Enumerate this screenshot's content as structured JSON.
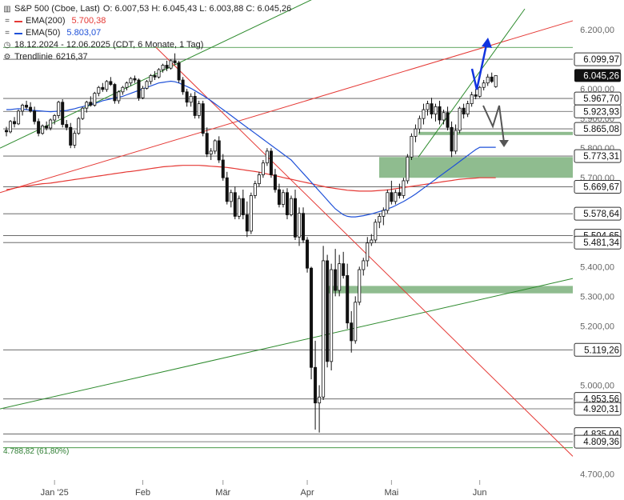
{
  "header": {
    "title": "S&P 500 (Cboe, Last)",
    "ohlc": "O: 6.007,53  H: 6.045,43  L: 6.003,88  C: 6.045,26",
    "ema200_label": "EMA(200)",
    "ema200_value": "5.700,38",
    "ema50_label": "EMA(50)",
    "ema50_value": "5.803,07",
    "range_label": "18.12.2024 - 12.06.2025  (CDT, 6 Monate, 1 Tag)",
    "trend_label": "Trendlinie",
    "trend_value": "6216,37"
  },
  "fibo_label": "4.788,82 (61,80%)",
  "colors": {
    "ema200": "#e53935",
    "ema50": "#1e50d8",
    "trend_green": "#2e8b2e",
    "trend_red": "#e53935",
    "zone": "#8fbc8f",
    "candle": "#111111",
    "label_bg": "#ffffff",
    "label_active_bg": "#111111"
  },
  "chart_data": {
    "type": "candlestick",
    "ylim": [
      4680,
      6300
    ],
    "y_ticks": [
      {
        "value": 6200,
        "label": "6.200,00"
      },
      {
        "value": 6000,
        "label": "6.000,00"
      },
      {
        "value": 5900,
        "label": "5.900,00"
      },
      {
        "value": 5800,
        "label": "5.800,00"
      },
      {
        "value": 5700,
        "label": "5.700,00"
      },
      {
        "value": 5400,
        "label": "5.400,00"
      },
      {
        "value": 5300,
        "label": "5.300,00"
      },
      {
        "value": 5200,
        "label": "5.200,00"
      },
      {
        "value": 5000,
        "label": "5.000,00"
      },
      {
        "value": 4700,
        "label": "4.700,00"
      }
    ],
    "x_ticks": [
      {
        "index": 12,
        "label": "Jan '25"
      },
      {
        "index": 34,
        "label": "Feb"
      },
      {
        "index": 54,
        "label": "Mär"
      },
      {
        "index": 75,
        "label": "Apr"
      },
      {
        "index": 96,
        "label": "Mai"
      },
      {
        "index": 118,
        "label": "Jun"
      }
    ],
    "horizontal_levels": [
      {
        "value": 6099.97,
        "label": "6.099,97"
      },
      {
        "value": 5967.7,
        "label": "5.967,70"
      },
      {
        "value": 5923.93,
        "label": "5.923,93"
      },
      {
        "value": 5865.08,
        "label": "5.865,08"
      },
      {
        "value": 5773.31,
        "label": "5.773,31"
      },
      {
        "value": 5669.67,
        "label": "5.669,67"
      },
      {
        "value": 5578.64,
        "label": "5.578,64"
      },
      {
        "value": 5504.65,
        "label": "5.504,65"
      },
      {
        "value": 5481.34,
        "label": "5.481,34"
      },
      {
        "value": 5119.26,
        "label": "5.119,26"
      },
      {
        "value": 4953.56,
        "label": "4.953,56"
      },
      {
        "value": 4920.31,
        "label": "4.920,31"
      },
      {
        "value": 4835.04,
        "label": "4.835,04"
      },
      {
        "value": 4809.36,
        "label": "4.809,36"
      },
      {
        "value": 4788.82,
        "label": ""
      }
    ],
    "last_price": {
      "value": 6045.26,
      "label": "6.045,26"
    },
    "zones": [
      {
        "from": 5845,
        "to": 5855
      },
      {
        "from": 5700,
        "to": 5770
      },
      {
        "from": 5310,
        "to": 5335
      }
    ],
    "series": [
      {
        "name": "EMA(200)",
        "values": [
          5660,
          5662,
          5665,
          5668,
          5670,
          5672,
          5674,
          5676,
          5678,
          5680,
          5681,
          5682,
          5684,
          5686,
          5688,
          5690,
          5692,
          5694,
          5696,
          5698,
          5700,
          5702,
          5704,
          5706,
          5708,
          5710,
          5712,
          5714,
          5716,
          5718,
          5720,
          5721,
          5723,
          5725,
          5727,
          5729,
          5731,
          5733,
          5735,
          5737,
          5738,
          5739,
          5740,
          5741,
          5742,
          5742,
          5742,
          5742,
          5742,
          5741,
          5740,
          5739,
          5738,
          5737,
          5736,
          5735,
          5733,
          5731,
          5729,
          5727,
          5725,
          5723,
          5721,
          5719,
          5716,
          5713,
          5710,
          5707,
          5704,
          5701,
          5698,
          5695,
          5692,
          5689,
          5686,
          5683,
          5680,
          5677,
          5674,
          5671,
          5668,
          5666,
          5664,
          5662,
          5660,
          5658,
          5657,
          5656,
          5655,
          5655,
          5655,
          5655,
          5656,
          5657,
          5658,
          5659,
          5661,
          5663,
          5665,
          5667,
          5669,
          5671,
          5673,
          5675,
          5677,
          5679,
          5681,
          5683,
          5685,
          5687,
          5689,
          5691,
          5693,
          5695,
          5696,
          5697,
          5698,
          5699,
          5700,
          5700,
          5700,
          5700,
          5700
        ]
      },
      {
        "name": "EMA(50)",
        "values": [
          5930,
          5930,
          5932,
          5933,
          5932,
          5930,
          5928,
          5927,
          5926,
          5925,
          5924,
          5923,
          5924,
          5925,
          5926,
          5927,
          5930,
          5933,
          5937,
          5940,
          5944,
          5947,
          5950,
          5955,
          5960,
          5963,
          5966,
          5970,
          5972,
          5975,
          5980,
          5985,
          5990,
          5995,
          6000,
          6005,
          6010,
          6015,
          6020,
          6022,
          6024,
          6026,
          6024,
          6020,
          6014,
          6008,
          6002,
          5994,
          5986,
          5978,
          5969,
          5960,
          5950,
          5940,
          5930,
          5920,
          5910,
          5900,
          5890,
          5880,
          5870,
          5860,
          5850,
          5840,
          5830,
          5820,
          5810,
          5800,
          5790,
          5780,
          5770,
          5760,
          5745,
          5730,
          5715,
          5700,
          5685,
          5670,
          5655,
          5640,
          5625,
          5610,
          5595,
          5585,
          5575,
          5570,
          5568,
          5568,
          5570,
          5572,
          5575,
          5578,
          5582,
          5586,
          5590,
          5595,
          5600,
          5606,
          5613,
          5620,
          5628,
          5636,
          5645,
          5655,
          5665,
          5675,
          5685,
          5695,
          5705,
          5715,
          5725,
          5735,
          5745,
          5755,
          5765,
          5775,
          5785,
          5795,
          5803,
          5803,
          5803,
          5803,
          5803
        ]
      }
    ],
    "candles": [
      [
        5860,
        5872,
        5840,
        5855
      ],
      [
        5855,
        5895,
        5850,
        5890
      ],
      [
        5890,
        5905,
        5870,
        5882
      ],
      [
        5882,
        5930,
        5878,
        5925
      ],
      [
        5925,
        5950,
        5910,
        5945
      ],
      [
        5945,
        5960,
        5930,
        5938
      ],
      [
        5938,
        5955,
        5920,
        5925
      ],
      [
        5925,
        5940,
        5880,
        5890
      ],
      [
        5890,
        5900,
        5840,
        5850
      ],
      [
        5850,
        5880,
        5845,
        5875
      ],
      [
        5875,
        5890,
        5860,
        5868
      ],
      [
        5868,
        5900,
        5860,
        5895
      ],
      [
        5895,
        5915,
        5880,
        5910
      ],
      [
        5910,
        5960,
        5900,
        5955
      ],
      [
        5955,
        5965,
        5870,
        5880
      ],
      [
        5880,
        5895,
        5860,
        5870
      ],
      [
        5870,
        5885,
        5800,
        5810
      ],
      [
        5810,
        5860,
        5800,
        5850
      ],
      [
        5850,
        5905,
        5845,
        5900
      ],
      [
        5900,
        5940,
        5895,
        5935
      ],
      [
        5935,
        5960,
        5920,
        5955
      ],
      [
        5955,
        5975,
        5940,
        5945
      ],
      [
        5945,
        5990,
        5940,
        5985
      ],
      [
        5985,
        6010,
        5975,
        6005
      ],
      [
        6005,
        6020,
        5990,
        5998
      ],
      [
        5998,
        6030,
        5990,
        6025
      ],
      [
        6025,
        6040,
        6010,
        6015
      ],
      [
        6015,
        6020,
        5950,
        5960
      ],
      [
        5960,
        5995,
        5950,
        5990
      ],
      [
        5990,
        6010,
        5980,
        6005
      ],
      [
        6005,
        6025,
        5995,
        6020
      ],
      [
        6020,
        6040,
        6010,
        6035
      ],
      [
        6035,
        6045,
        6020,
        6030
      ],
      [
        6030,
        6035,
        5960,
        5970
      ],
      [
        5970,
        6010,
        5965,
        6002
      ],
      [
        6002,
        6030,
        5998,
        6025
      ],
      [
        6025,
        6050,
        6015,
        6045
      ],
      [
        6045,
        6060,
        6030,
        6040
      ],
      [
        6040,
        6070,
        6035,
        6065
      ],
      [
        6065,
        6085,
        6055,
        6080
      ],
      [
        6080,
        6095,
        6060,
        6070
      ],
      [
        6070,
        6100,
        6065,
        6095
      ],
      [
        6095,
        6120,
        6080,
        6088
      ],
      [
        6088,
        6095,
        6020,
        6030
      ],
      [
        6030,
        6040,
        5980,
        5990
      ],
      [
        5990,
        6000,
        5940,
        5955
      ],
      [
        5955,
        5985,
        5940,
        5975
      ],
      [
        5975,
        5990,
        5900,
        5910
      ],
      [
        5910,
        5960,
        5900,
        5950
      ],
      [
        5950,
        5960,
        5840,
        5850
      ],
      [
        5850,
        5870,
        5770,
        5780
      ],
      [
        5780,
        5800,
        5760,
        5790
      ],
      [
        5790,
        5830,
        5780,
        5825
      ],
      [
        5825,
        5840,
        5750,
        5760
      ],
      [
        5760,
        5780,
        5690,
        5700
      ],
      [
        5700,
        5720,
        5610,
        5620
      ],
      [
        5620,
        5660,
        5600,
        5650
      ],
      [
        5650,
        5670,
        5560,
        5570
      ],
      [
        5570,
        5640,
        5560,
        5630
      ],
      [
        5630,
        5660,
        5560,
        5575
      ],
      [
        5575,
        5620,
        5500,
        5520
      ],
      [
        5520,
        5650,
        5510,
        5640
      ],
      [
        5640,
        5690,
        5630,
        5680
      ],
      [
        5680,
        5720,
        5670,
        5710
      ],
      [
        5710,
        5760,
        5700,
        5750
      ],
      [
        5750,
        5800,
        5740,
        5790
      ],
      [
        5790,
        5800,
        5700,
        5710
      ],
      [
        5710,
        5730,
        5650,
        5660
      ],
      [
        5660,
        5680,
        5600,
        5610
      ],
      [
        5610,
        5660,
        5600,
        5650
      ],
      [
        5650,
        5665,
        5560,
        5575
      ],
      [
        5575,
        5640,
        5570,
        5630
      ],
      [
        5630,
        5660,
        5490,
        5500
      ],
      [
        5500,
        5600,
        5470,
        5580
      ],
      [
        5580,
        5600,
        5480,
        5490
      ],
      [
        5490,
        5500,
        5380,
        5395
      ],
      [
        5395,
        5400,
        5020,
        5060
      ],
      [
        5060,
        5150,
        4850,
        4940
      ],
      [
        4940,
        5000,
        4840,
        4960
      ],
      [
        4960,
        5470,
        4950,
        5420
      ],
      [
        5420,
        5440,
        5060,
        5080
      ],
      [
        5080,
        5410,
        5050,
        5390
      ],
      [
        5390,
        5460,
        5300,
        5320
      ],
      [
        5320,
        5440,
        5300,
        5410
      ],
      [
        5410,
        5450,
        5360,
        5370
      ],
      [
        5370,
        5410,
        5190,
        5210
      ],
      [
        5210,
        5250,
        5110,
        5150
      ],
      [
        5150,
        5300,
        5140,
        5280
      ],
      [
        5280,
        5400,
        5270,
        5390
      ],
      [
        5390,
        5430,
        5370,
        5420
      ],
      [
        5420,
        5500,
        5400,
        5480
      ],
      [
        5480,
        5510,
        5470,
        5490
      ],
      [
        5490,
        5560,
        5480,
        5550
      ],
      [
        5550,
        5580,
        5530,
        5570
      ],
      [
        5570,
        5600,
        5540,
        5590
      ],
      [
        5590,
        5660,
        5580,
        5650
      ],
      [
        5650,
        5690,
        5610,
        5620
      ],
      [
        5620,
        5660,
        5610,
        5650
      ],
      [
        5650,
        5680,
        5630,
        5640
      ],
      [
        5640,
        5700,
        5630,
        5690
      ],
      [
        5690,
        5780,
        5680,
        5770
      ],
      [
        5770,
        5850,
        5760,
        5840
      ],
      [
        5840,
        5880,
        5820,
        5865
      ],
      [
        5865,
        5910,
        5850,
        5900
      ],
      [
        5900,
        5950,
        5880,
        5930
      ],
      [
        5930,
        5960,
        5910,
        5950
      ],
      [
        5950,
        5970,
        5900,
        5915
      ],
      [
        5915,
        5950,
        5890,
        5940
      ],
      [
        5940,
        5960,
        5880,
        5895
      ],
      [
        5895,
        5930,
        5880,
        5920
      ],
      [
        5920,
        5940,
        5860,
        5870
      ],
      [
        5870,
        5890,
        5770,
        5790
      ],
      [
        5790,
        5880,
        5780,
        5860
      ],
      [
        5860,
        5940,
        5850,
        5935
      ],
      [
        5935,
        5950,
        5900,
        5915
      ],
      [
        5915,
        5960,
        5905,
        5950
      ],
      [
        5950,
        5990,
        5940,
        5980
      ],
      [
        5980,
        6000,
        5965,
        5975
      ],
      [
        5975,
        6010,
        5970,
        6005
      ],
      [
        6005,
        6030,
        5995,
        6020
      ],
      [
        6020,
        6050,
        6010,
        6040
      ],
      [
        6040,
        6055,
        6020,
        6025
      ],
      [
        6007.53,
        6045.43,
        6003.88,
        6045.26
      ]
    ]
  }
}
